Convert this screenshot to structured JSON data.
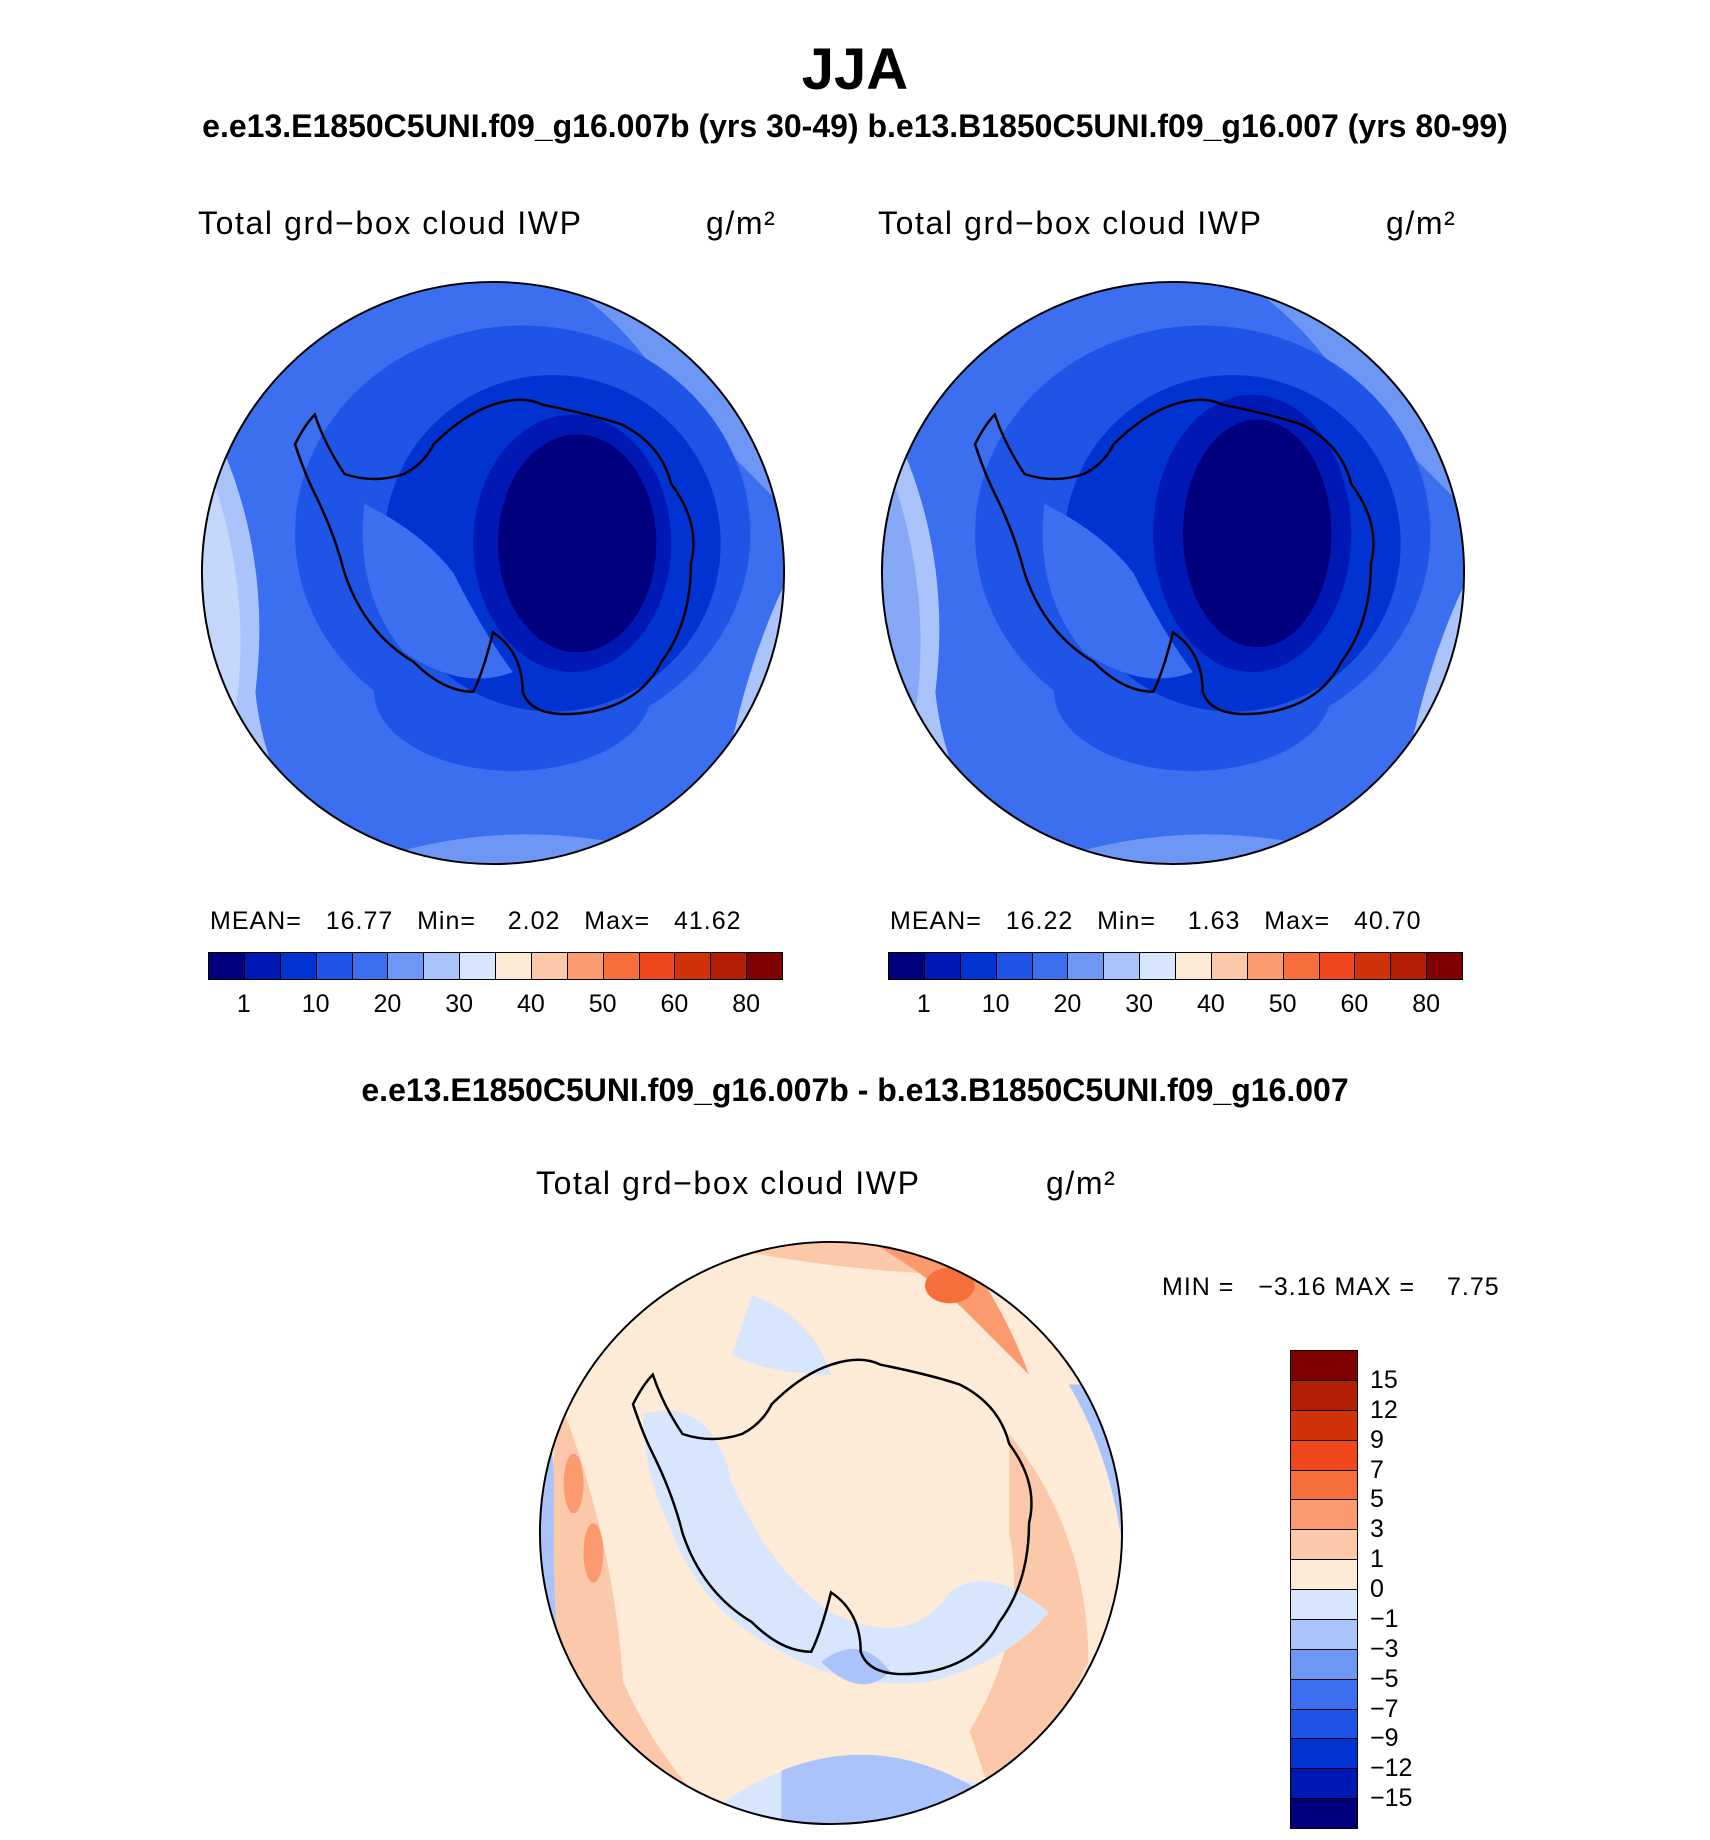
{
  "header": {
    "title": "JJA",
    "subtitle": "e.e13.E1850C5UNI.f09_g16.007b (yrs 30-49)  b.e13.B1850C5UNI.f09_g16.007 (yrs 80-99)",
    "diff_title": "e.e13.E1850C5UNI.f09_g16.007b - b.e13.B1850C5UNI.f09_g16.007"
  },
  "panels": [
    {
      "variable": "Total grd−box cloud IWP",
      "units": "g/m²",
      "stats": {
        "mean_label": "MEAN=",
        "mean": "16.77",
        "min_label": "Min=",
        "min": "2.02",
        "max_label": "Max=",
        "max": "41.62"
      }
    },
    {
      "variable": "Total grd−box cloud IWP",
      "units": "g/m²",
      "stats": {
        "mean_label": "MEAN=",
        "mean": "16.22",
        "min_label": "Min=",
        "min": "1.63",
        "max_label": "Max=",
        "max": "40.70"
      }
    }
  ],
  "diff_panel": {
    "variable": "Total grd−box cloud IWP",
    "units": "g/m²",
    "min_label": "MIN =",
    "min": "−3.16",
    "max_label": "MAX =",
    "max": "7.75"
  },
  "colorbar_abs": {
    "labels": [
      "1",
      "10",
      "20",
      "30",
      "40",
      "50",
      "60",
      "80"
    ],
    "colors": [
      "#00007f",
      "#0019b4",
      "#0033d2",
      "#1e55e6",
      "#3c6ef0",
      "#6e96f5",
      "#aac3fa",
      "#d7e6fc",
      "#fdebd7",
      "#fcc8aa",
      "#fa9a6e",
      "#f56e3c",
      "#f0461e",
      "#d2320a",
      "#b41e05",
      "#7f0000"
    ]
  },
  "colorbar_diff": {
    "labels": [
      "15",
      "12",
      "9",
      "7",
      "5",
      "3",
      "1",
      "0",
      "−1",
      "−3",
      "−5",
      "−7",
      "−9",
      "−12",
      "−15"
    ],
    "colors": [
      "#7f0000",
      "#b41e05",
      "#d2320a",
      "#f0461e",
      "#f56e3c",
      "#fa9a6e",
      "#fcc8aa",
      "#fdebd7",
      "#d7e6fc",
      "#aac3fa",
      "#6e96f5",
      "#3c6ef0",
      "#1e55e6",
      "#0033d2",
      "#0019b4",
      "#00007f"
    ]
  }
}
